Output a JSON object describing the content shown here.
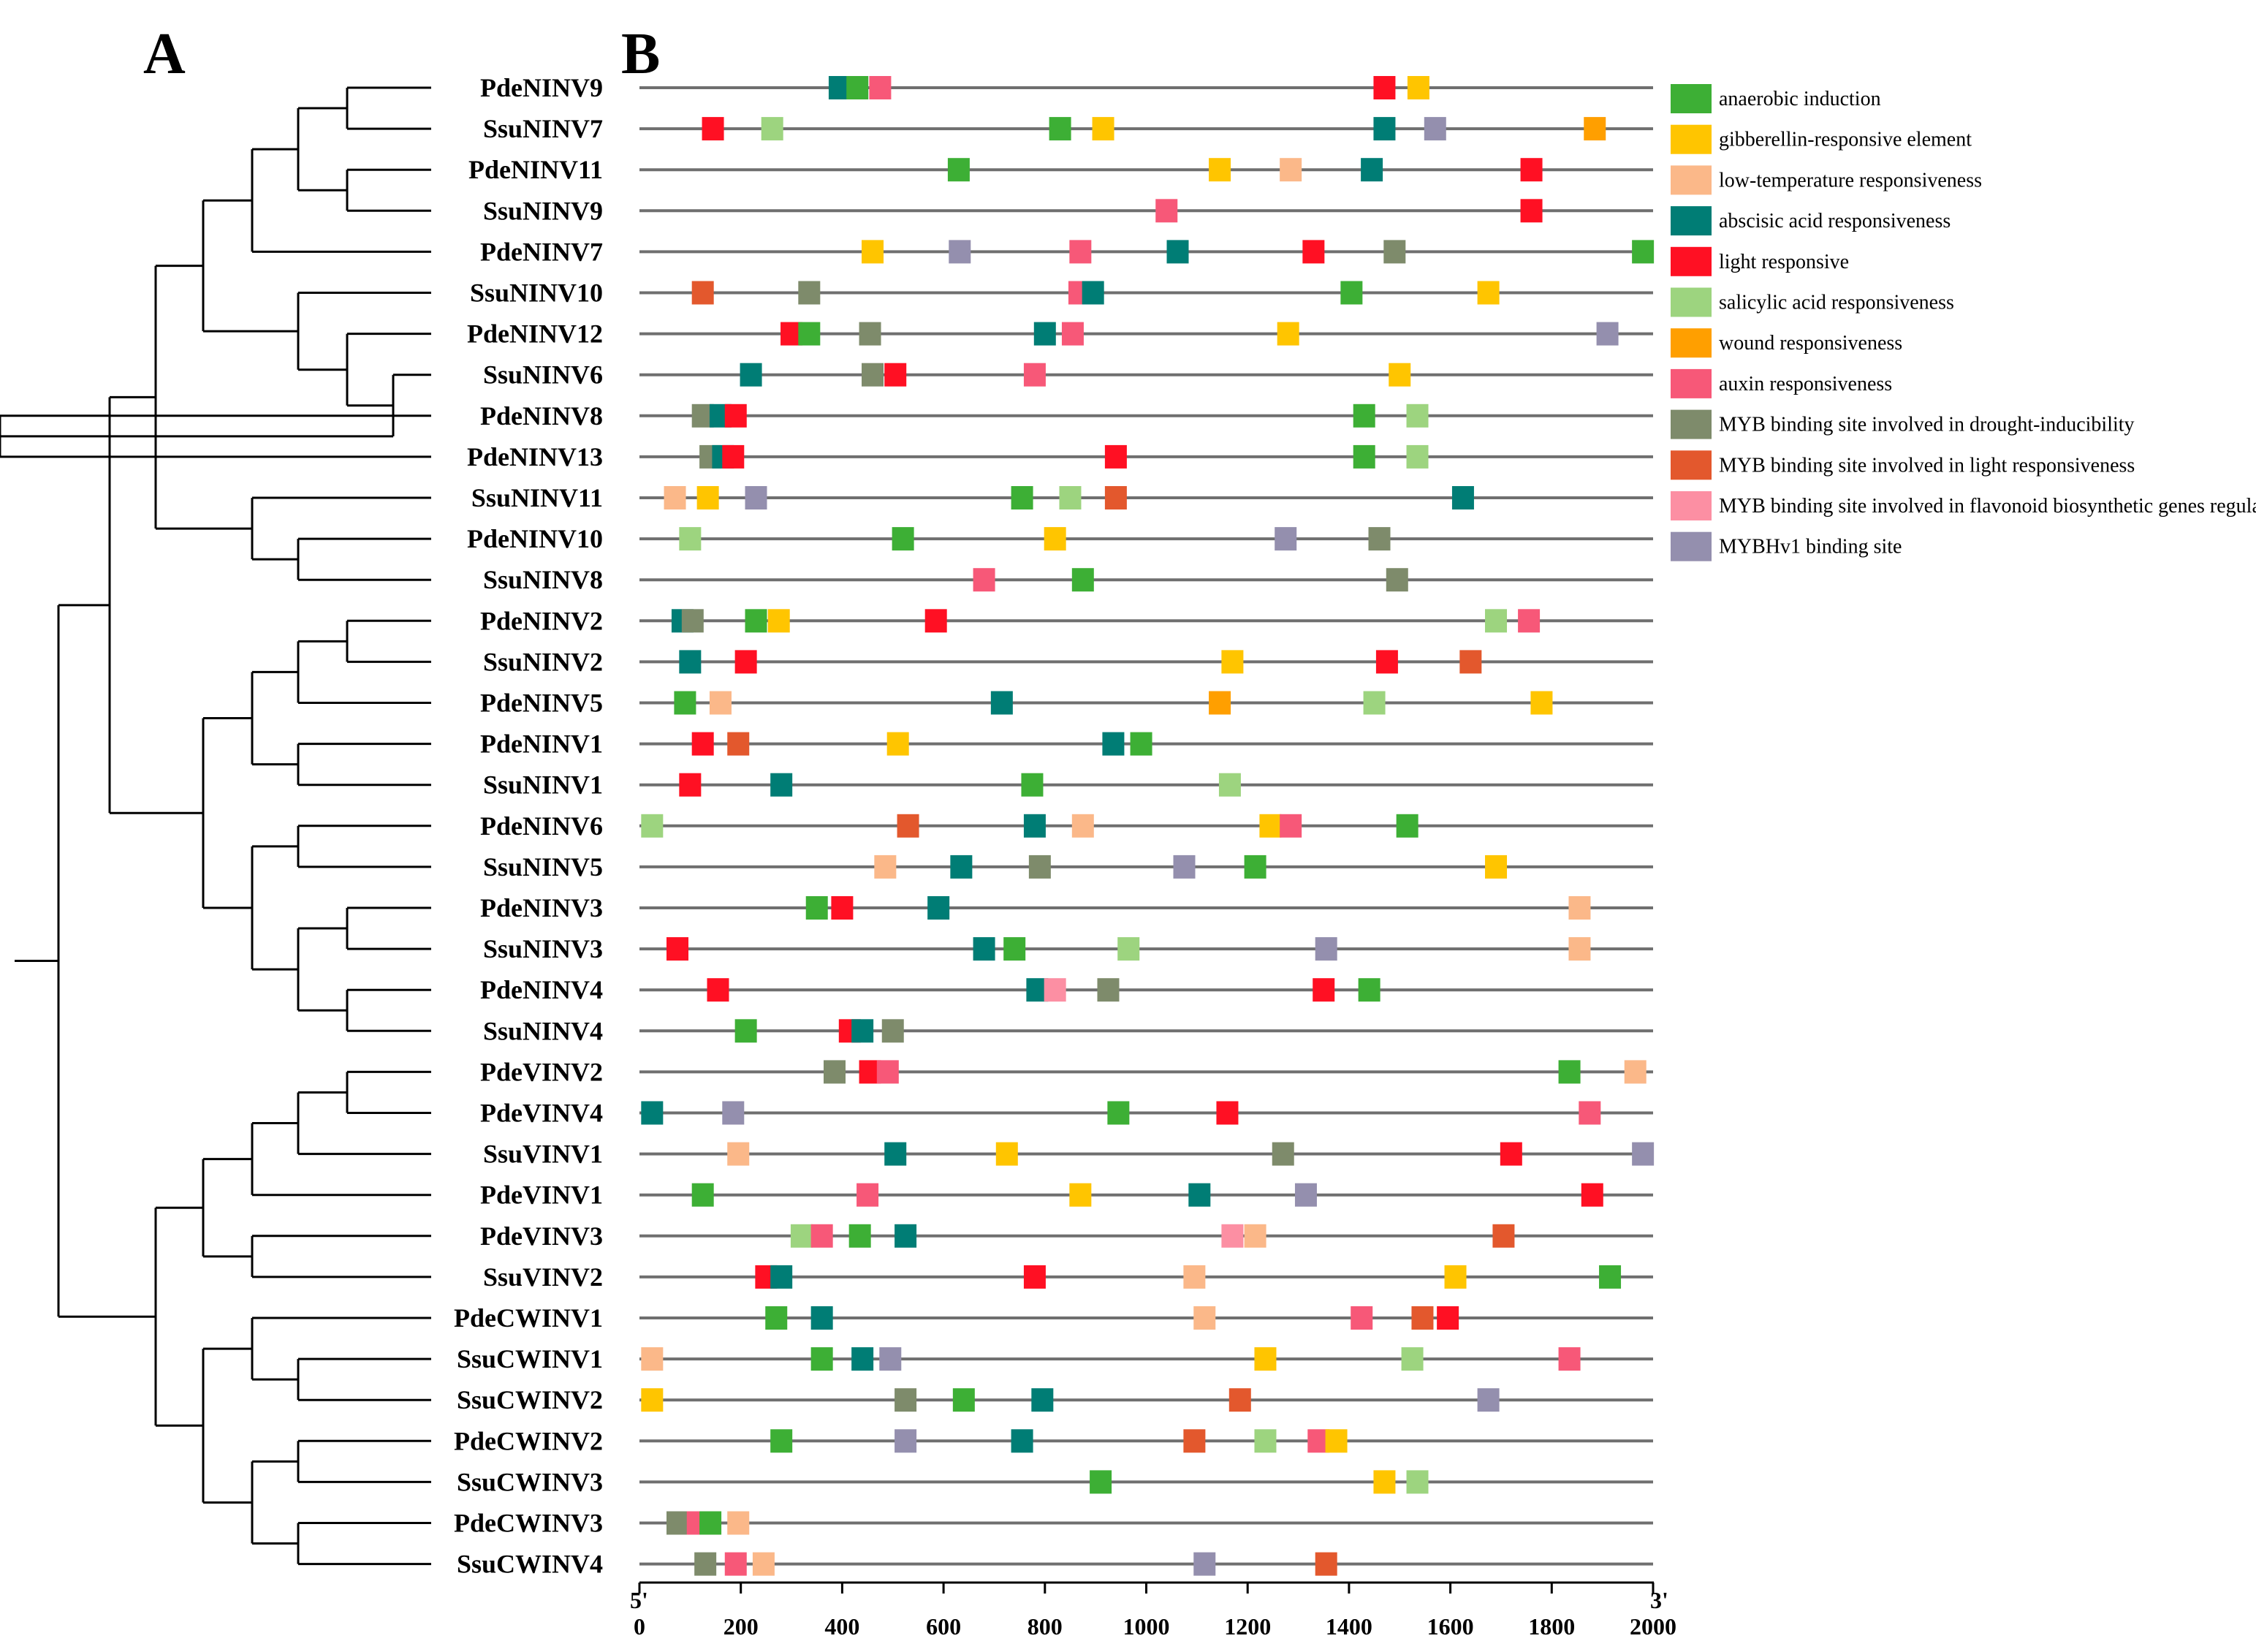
{
  "panels": {
    "a": "A",
    "b": "B"
  },
  "axis": {
    "start_label": "5'",
    "end_label": "3'",
    "min": 0,
    "max": 2000,
    "ticks": [
      0,
      200,
      400,
      600,
      800,
      1000,
      1200,
      1400,
      1600,
      1800,
      2000
    ]
  },
  "legend": [
    {
      "key": "anaerobic",
      "label": "anaerobic induction",
      "color": "#3daf35"
    },
    {
      "key": "gibberellin",
      "label": "gibberellin-responsive element",
      "color": "#ffc500"
    },
    {
      "key": "lowtemp",
      "label": "low-temperature responsiveness",
      "color": "#fbb889"
    },
    {
      "key": "aba",
      "label": "abscisic acid responsiveness",
      "color": "#007d75"
    },
    {
      "key": "light",
      "label": "light responsive",
      "color": "#ff1023"
    },
    {
      "key": "salicylic",
      "label": "salicylic acid responsiveness",
      "color": "#9dd47f"
    },
    {
      "key": "wound",
      "label": "wound responsiveness",
      "color": "#ff9f00"
    },
    {
      "key": "auxin",
      "label": "auxin responsiveness",
      "color": "#f75878"
    },
    {
      "key": "myb_drought",
      "label": "MYB binding site involved in drought-inducibility",
      "color": "#7e8b6b"
    },
    {
      "key": "myb_light",
      "label": "MYB binding site involved in light responsiveness",
      "color": "#e3582d"
    },
    {
      "key": "myb_flavonoid",
      "label": "MYB binding site involved in flavonoid biosynthetic genes regulation",
      "color": "#fc8fa3"
    },
    {
      "key": "mybhv1",
      "label": "MYBHv1 binding site",
      "color": "#948fae"
    }
  ],
  "genes": [
    {
      "name": "PdeNINV9",
      "elements": [
        [
          "aba",
          395
        ],
        [
          "anaerobic",
          430
        ],
        [
          "auxin",
          475
        ],
        [
          "light",
          1470
        ],
        [
          "gibberellin",
          1537
        ]
      ]
    },
    {
      "name": "SsuNINV7",
      "elements": [
        [
          "light",
          145
        ],
        [
          "salicylic",
          262
        ],
        [
          "anaerobic",
          830
        ],
        [
          "gibberellin",
          915
        ],
        [
          "aba",
          1470
        ],
        [
          "mybhv1",
          1570
        ],
        [
          "wound",
          1885
        ]
      ]
    },
    {
      "name": "PdeNINV11",
      "elements": [
        [
          "anaerobic",
          630
        ],
        [
          "gibberellin",
          1145
        ],
        [
          "lowtemp",
          1285
        ],
        [
          "aba",
          1445
        ],
        [
          "light",
          1760
        ]
      ]
    },
    {
      "name": "SsuNINV9",
      "elements": [
        [
          "auxin",
          1040
        ],
        [
          "light",
          1760
        ]
      ]
    },
    {
      "name": "PdeNINV7",
      "elements": [
        [
          "gibberellin",
          460
        ],
        [
          "mybhv1",
          632
        ],
        [
          "auxin",
          870
        ],
        [
          "aba",
          1062
        ],
        [
          "light",
          1330
        ],
        [
          "myb_drought",
          1490
        ],
        [
          "anaerobic",
          1980
        ]
      ]
    },
    {
      "name": "SsuNINV10",
      "elements": [
        [
          "myb_light",
          125
        ],
        [
          "myb_drought",
          335
        ],
        [
          "auxin",
          868
        ],
        [
          "aba",
          895
        ],
        [
          "anaerobic",
          1405
        ],
        [
          "gibberellin",
          1675
        ]
      ]
    },
    {
      "name": "PdeNINV12",
      "elements": [
        [
          "light",
          300
        ],
        [
          "anaerobic",
          335
        ],
        [
          "myb_drought",
          455
        ],
        [
          "aba",
          800
        ],
        [
          "auxin",
          855
        ],
        [
          "gibberellin",
          1280
        ],
        [
          "mybhv1",
          1910
        ]
      ]
    },
    {
      "name": "SsuNINV6",
      "elements": [
        [
          "aba",
          220
        ],
        [
          "myb_drought",
          460
        ],
        [
          "light",
          505
        ],
        [
          "auxin",
          780
        ],
        [
          "gibberellin",
          1500
        ]
      ]
    },
    {
      "name": "PdeNINV8",
      "elements": [
        [
          "myb_drought",
          125
        ],
        [
          "aba",
          160
        ],
        [
          "light",
          190
        ],
        [
          "anaerobic",
          1430
        ],
        [
          "salicylic",
          1535
        ]
      ]
    },
    {
      "name": "PdeNINV13",
      "elements": [
        [
          "myb_drought",
          140
        ],
        [
          "aba",
          165
        ],
        [
          "light",
          185
        ],
        [
          "light",
          940
        ],
        [
          "anaerobic",
          1430
        ],
        [
          "salicylic",
          1535
        ]
      ]
    },
    {
      "name": "SsuNINV11",
      "elements": [
        [
          "lowtemp",
          70
        ],
        [
          "gibberellin",
          135
        ],
        [
          "mybhv1",
          230
        ],
        [
          "anaerobic",
          755
        ],
        [
          "salicylic",
          850
        ],
        [
          "myb_light",
          940
        ],
        [
          "aba",
          1625
        ]
      ]
    },
    {
      "name": "PdeNINV10",
      "elements": [
        [
          "salicylic",
          100
        ],
        [
          "anaerobic",
          520
        ],
        [
          "gibberellin",
          820
        ],
        [
          "mybhv1",
          1275
        ],
        [
          "myb_drought",
          1460
        ]
      ]
    },
    {
      "name": "SsuNINV8",
      "elements": [
        [
          "auxin",
          680
        ],
        [
          "anaerobic",
          875
        ],
        [
          "myb_drought",
          1495
        ]
      ]
    },
    {
      "name": "PdeNINV2",
      "elements": [
        [
          "aba",
          85
        ],
        [
          "myb_drought",
          105
        ],
        [
          "anaerobic",
          230
        ],
        [
          "gibberellin",
          275
        ],
        [
          "light",
          585
        ],
        [
          "salicylic",
          1690
        ],
        [
          "auxin",
          1755
        ]
      ]
    },
    {
      "name": "SsuNINV2",
      "elements": [
        [
          "aba",
          100
        ],
        [
          "light",
          210
        ],
        [
          "gibberellin",
          1170
        ],
        [
          "light",
          1475
        ],
        [
          "myb_light",
          1640
        ]
      ]
    },
    {
      "name": "PdeNINV5",
      "elements": [
        [
          "anaerobic",
          90
        ],
        [
          "lowtemp",
          160
        ],
        [
          "aba",
          715
        ],
        [
          "wound",
          1145
        ],
        [
          "salicylic",
          1450
        ],
        [
          "gibberellin",
          1780
        ]
      ]
    },
    {
      "name": "PdeNINV1",
      "elements": [
        [
          "light",
          125
        ],
        [
          "myb_light",
          195
        ],
        [
          "gibberellin",
          510
        ],
        [
          "aba",
          935
        ],
        [
          "anaerobic",
          990
        ]
      ]
    },
    {
      "name": "SsuNINV1",
      "elements": [
        [
          "light",
          100
        ],
        [
          "aba",
          280
        ],
        [
          "anaerobic",
          775
        ],
        [
          "salicylic",
          1165
        ]
      ]
    },
    {
      "name": "PdeNINV6",
      "elements": [
        [
          "salicylic",
          25
        ],
        [
          "myb_light",
          530
        ],
        [
          "aba",
          780
        ],
        [
          "lowtemp",
          875
        ],
        [
          "gibberellin",
          1245
        ],
        [
          "auxin",
          1285
        ],
        [
          "anaerobic",
          1515
        ]
      ]
    },
    {
      "name": "SsuNINV5",
      "elements": [
        [
          "lowtemp",
          485
        ],
        [
          "aba",
          635
        ],
        [
          "myb_drought",
          790
        ],
        [
          "mybhv1",
          1075
        ],
        [
          "anaerobic",
          1215
        ],
        [
          "gibberellin",
          1690
        ]
      ]
    },
    {
      "name": "PdeNINV3",
      "elements": [
        [
          "anaerobic",
          350
        ],
        [
          "light",
          400
        ],
        [
          "aba",
          590
        ],
        [
          "lowtemp",
          1855
        ]
      ]
    },
    {
      "name": "SsuNINV3",
      "elements": [
        [
          "light",
          75
        ],
        [
          "aba",
          680
        ],
        [
          "anaerobic",
          740
        ],
        [
          "salicylic",
          965
        ],
        [
          "mybhv1",
          1355
        ],
        [
          "lowtemp",
          1855
        ]
      ]
    },
    {
      "name": "PdeNINV4",
      "elements": [
        [
          "light",
          155
        ],
        [
          "aba",
          785
        ],
        [
          "myb_flavonoid",
          820
        ],
        [
          "myb_drought",
          925
        ],
        [
          "light",
          1350
        ],
        [
          "anaerobic",
          1440
        ]
      ]
    },
    {
      "name": "SsuNINV4",
      "elements": [
        [
          "anaerobic",
          210
        ],
        [
          "light",
          415
        ],
        [
          "aba",
          440
        ],
        [
          "myb_drought",
          500
        ]
      ]
    },
    {
      "name": "PdeVINV2",
      "elements": [
        [
          "myb_drought",
          385
        ],
        [
          "light",
          455
        ],
        [
          "auxin",
          490
        ],
        [
          "anaerobic",
          1835
        ],
        [
          "lowtemp",
          1965
        ]
      ]
    },
    {
      "name": "PdeVINV4",
      "elements": [
        [
          "aba",
          25
        ],
        [
          "mybhv1",
          185
        ],
        [
          "anaerobic",
          945
        ],
        [
          "light",
          1160
        ],
        [
          "auxin",
          1875
        ]
      ]
    },
    {
      "name": "SsuVINV1",
      "elements": [
        [
          "lowtemp",
          195
        ],
        [
          "aba",
          505
        ],
        [
          "gibberellin",
          725
        ],
        [
          "myb_drought",
          1270
        ],
        [
          "light",
          1720
        ],
        [
          "mybhv1",
          1980
        ]
      ]
    },
    {
      "name": "PdeVINV1",
      "elements": [
        [
          "anaerobic",
          125
        ],
        [
          "auxin",
          450
        ],
        [
          "gibberellin",
          870
        ],
        [
          "aba",
          1105
        ],
        [
          "mybhv1",
          1315
        ],
        [
          "light",
          1880
        ]
      ]
    },
    {
      "name": "PdeVINV3",
      "elements": [
        [
          "salicylic",
          320
        ],
        [
          "auxin",
          360
        ],
        [
          "anaerobic",
          435
        ],
        [
          "aba",
          525
        ],
        [
          "myb_flavonoid",
          1170
        ],
        [
          "lowtemp",
          1215
        ],
        [
          "myb_light",
          1705
        ]
      ]
    },
    {
      "name": "SsuVINV2",
      "elements": [
        [
          "light",
          250
        ],
        [
          "aba",
          280
        ],
        [
          "light",
          780
        ],
        [
          "lowtemp",
          1095
        ],
        [
          "gibberellin",
          1610
        ],
        [
          "anaerobic",
          1915
        ]
      ]
    },
    {
      "name": "PdeCWINV1",
      "elements": [
        [
          "anaerobic",
          270
        ],
        [
          "aba",
          360
        ],
        [
          "lowtemp",
          1115
        ],
        [
          "auxin",
          1425
        ],
        [
          "myb_light",
          1545
        ],
        [
          "light",
          1595
        ]
      ]
    },
    {
      "name": "SsuCWINV1",
      "elements": [
        [
          "lowtemp",
          25
        ],
        [
          "anaerobic",
          360
        ],
        [
          "aba",
          440
        ],
        [
          "mybhv1",
          495
        ],
        [
          "gibberellin",
          1235
        ],
        [
          "salicylic",
          1525
        ],
        [
          "auxin",
          1835
        ]
      ]
    },
    {
      "name": "SsuCWINV2",
      "elements": [
        [
          "gibberellin",
          25
        ],
        [
          "myb_drought",
          525
        ],
        [
          "anaerobic",
          640
        ],
        [
          "aba",
          795
        ],
        [
          "myb_light",
          1185
        ],
        [
          "mybhv1",
          1675
        ]
      ]
    },
    {
      "name": "PdeCWINV2",
      "elements": [
        [
          "anaerobic",
          280
        ],
        [
          "mybhv1",
          525
        ],
        [
          "aba",
          755
        ],
        [
          "myb_light",
          1095
        ],
        [
          "salicylic",
          1235
        ],
        [
          "auxin",
          1340
        ],
        [
          "gibberellin",
          1375
        ]
      ]
    },
    {
      "name": "SsuCWINV3",
      "elements": [
        [
          "anaerobic",
          910
        ],
        [
          "gibberellin",
          1470
        ],
        [
          "salicylic",
          1535
        ]
      ]
    },
    {
      "name": "PdeCWINV3",
      "elements": [
        [
          "myb_drought",
          75
        ],
        [
          "auxin",
          115
        ],
        [
          "anaerobic",
          140
        ],
        [
          "lowtemp",
          195
        ]
      ]
    },
    {
      "name": "SsuCWINV4",
      "elements": [
        [
          "myb_drought",
          130
        ],
        [
          "auxin",
          190
        ],
        [
          "lowtemp",
          245
        ],
        [
          "mybhv1",
          1115
        ],
        [
          "myb_light",
          1355
        ]
      ]
    }
  ]
}
